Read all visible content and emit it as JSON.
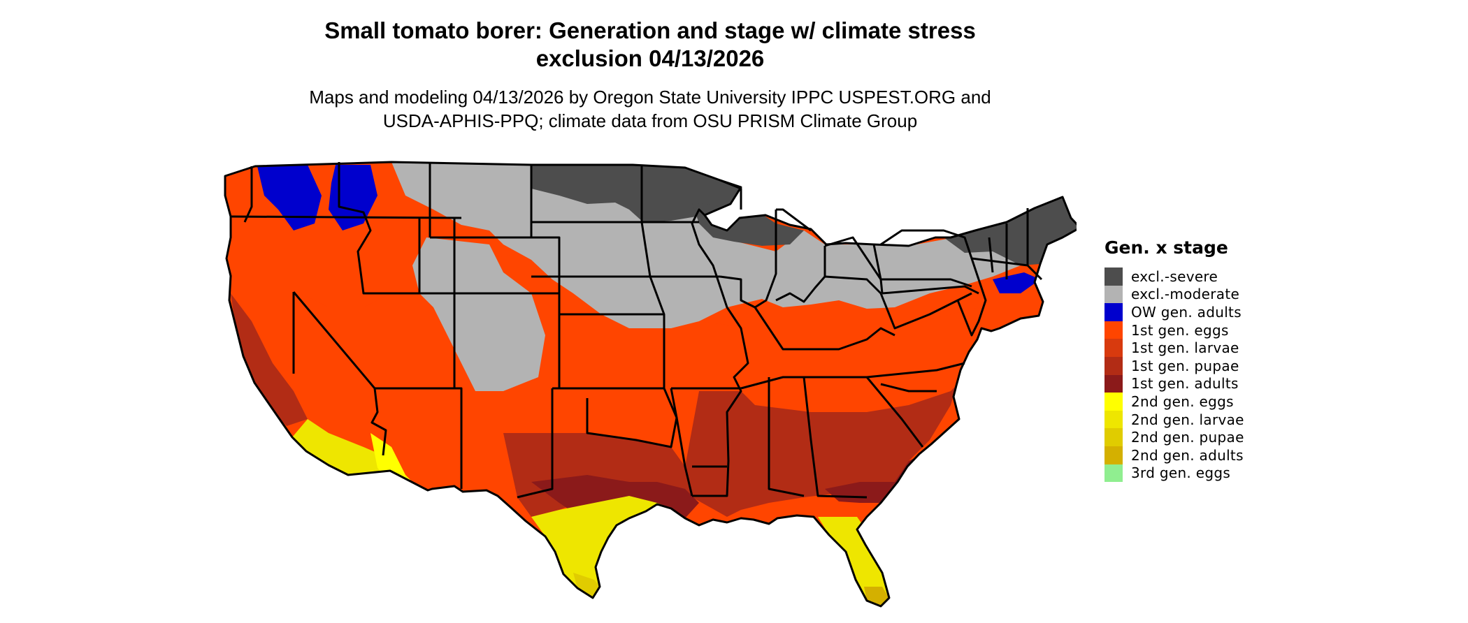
{
  "title": {
    "line1": "Small tomato borer: Generation and stage w/ climate stress",
    "line2": "exclusion 04/13/2026"
  },
  "subtitle": {
    "line1": "Maps and modeling 04/13/2026 by Oregon State University IPPC USPEST.ORG and",
    "line2": "USDA-APHIS-PPQ; climate data from OSU PRISM Climate Group"
  },
  "legend": {
    "title": "Gen. x stage",
    "items": [
      {
        "label": "excl.-severe",
        "color": "#4d4d4d"
      },
      {
        "label": "excl.-moderate",
        "color": "#b3b3b3"
      },
      {
        "label": "OW gen. adults",
        "color": "#0000cd"
      },
      {
        "label": "1st gen. eggs",
        "color": "#ff4500"
      },
      {
        "label": "1st gen. larvae",
        "color": "#d83a0e"
      },
      {
        "label": "1st gen. pupae",
        "color": "#b22c15"
      },
      {
        "label": "1st gen. adults",
        "color": "#8b1a1a"
      },
      {
        "label": "2nd gen. eggs",
        "color": "#ffff00"
      },
      {
        "label": "2nd gen. larvae",
        "color": "#eee600"
      },
      {
        "label": "2nd gen. pupae",
        "color": "#e0cc00"
      },
      {
        "label": "2nd gen. adults",
        "color": "#d4b000"
      },
      {
        "label": "3rd gen. eggs",
        "color": "#90ee90"
      }
    ]
  }
}
